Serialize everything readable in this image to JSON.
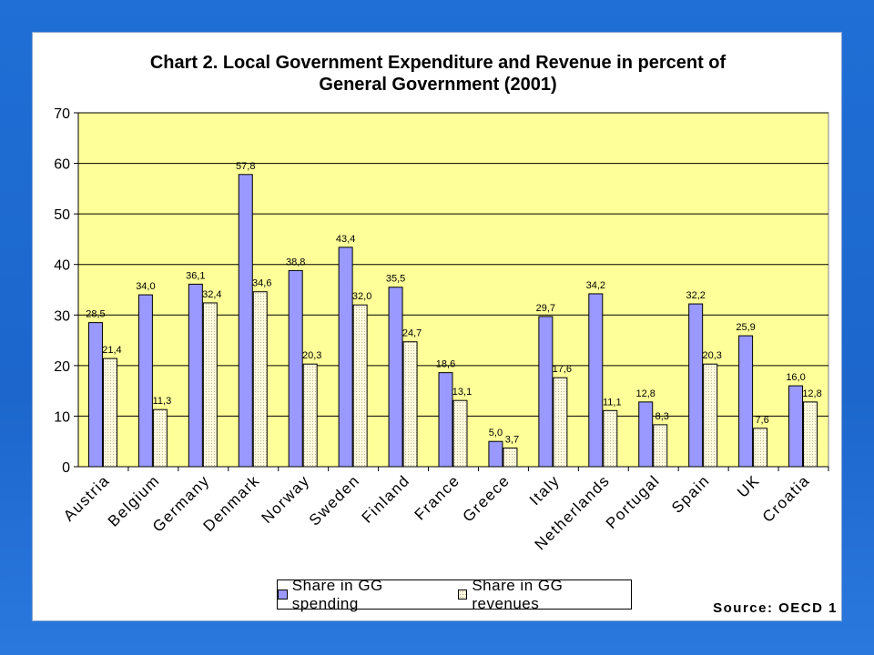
{
  "chart_data": {
    "type": "bar",
    "title_line1": "Chart 2. Local Government Expenditure and Revenue in percent of",
    "title_line2": "General Government (2001)",
    "categories": [
      "Austria",
      "Belgium",
      "Germany",
      "Denmark",
      "Norway",
      "Sweden",
      "Finland",
      "France",
      "Greece",
      "Italy",
      "Netherlands",
      "Portugal",
      "Spain",
      "UK",
      "Croatia"
    ],
    "series": [
      {
        "name": "Share in GG spending",
        "color": "#9999ff",
        "values": [
          28.5,
          34.0,
          36.1,
          57.8,
          38.8,
          43.4,
          35.5,
          18.6,
          5.0,
          29.7,
          34.2,
          12.8,
          32.2,
          25.9,
          16.0
        ],
        "labels": [
          "28,5",
          "34,0",
          "36,1",
          "57,8",
          "38,8",
          "43,4",
          "35,5",
          "18,6",
          "5,0",
          "29,7",
          "34,2",
          "12,8",
          "32,2",
          "25,9",
          "16,0"
        ]
      },
      {
        "name": "Share in GG revenues",
        "color": "#fffbe0",
        "values": [
          21.4,
          11.3,
          32.4,
          34.6,
          20.3,
          32.0,
          24.7,
          13.1,
          3.7,
          17.6,
          11.1,
          8.3,
          20.3,
          7.6,
          12.8
        ],
        "labels": [
          "21,4",
          "11,3",
          "32,4",
          "34,6",
          "20,3",
          "32,0",
          "24,7",
          "13,1",
          "3,7",
          "17,6",
          "11,1",
          "8,3",
          "20,3",
          "7,6",
          "12,8"
        ]
      }
    ],
    "ylim": [
      0,
      70
    ],
    "yticks": [
      "0",
      "10",
      "20",
      "30",
      "40",
      "50",
      "60",
      "70"
    ],
    "plot_background": "#ffff99",
    "grid": true,
    "legend_position": "bottom"
  },
  "source": "Source: OECD 1"
}
